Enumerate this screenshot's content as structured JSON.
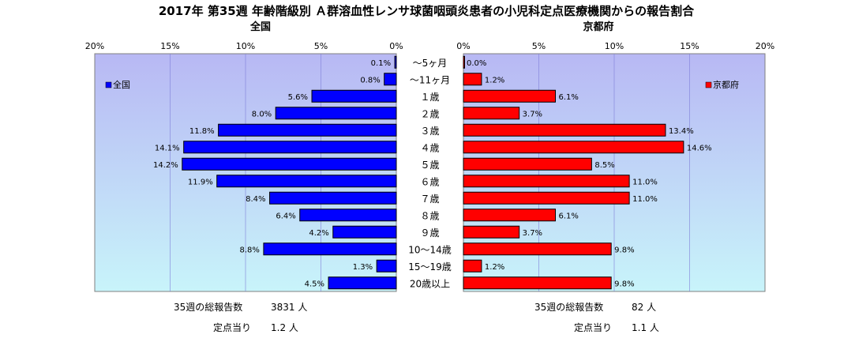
{
  "title": "2017年 第35週 年齢階級別 Ａ群溶血性レンサ球菌咽頭炎患者の小児科定点医療機関からの報告割合",
  "chart_data": {
    "type": "bar",
    "orientation": "horizontal",
    "layout": "back-to-back",
    "categories": [
      "～5ヶ月",
      "～11ヶ月",
      "１歳",
      "２歳",
      "３歳",
      "４歳",
      "５歳",
      "６歳",
      "７歳",
      "８歳",
      "９歳",
      "10～14歳",
      "15～19歳",
      "20歳以上"
    ],
    "panels": [
      {
        "subtitle": "全国",
        "legend": "全国",
        "legend_position": "left",
        "direction": "reversed",
        "color": "#0000ff",
        "xlim": [
          0,
          20
        ],
        "ticks": [
          "20%",
          "15%",
          "10%",
          "5%",
          "0%"
        ],
        "values": [
          0.1,
          0.8,
          5.6,
          8.0,
          11.8,
          14.1,
          14.2,
          11.9,
          8.4,
          6.4,
          4.2,
          8.8,
          1.3,
          4.5
        ],
        "labels": [
          "0.1%",
          "0.8%",
          "5.6%",
          "8.0%",
          "11.8%",
          "14.1%",
          "14.2%",
          "11.9%",
          "8.4%",
          "6.4%",
          "4.2%",
          "8.8%",
          "1.3%",
          "4.5%"
        ]
      },
      {
        "subtitle": "京都府",
        "legend": "京都府",
        "legend_position": "right",
        "direction": "normal",
        "color": "#ff0000",
        "xlim": [
          0,
          20
        ],
        "ticks": [
          "0%",
          "5%",
          "10%",
          "15%",
          "20%"
        ],
        "values": [
          0.0,
          1.2,
          6.1,
          3.7,
          13.4,
          14.6,
          8.5,
          11.0,
          11.0,
          6.1,
          3.7,
          9.8,
          1.2,
          9.8
        ],
        "labels": [
          "0.0%",
          "1.2%",
          "6.1%",
          "3.7%",
          "13.4%",
          "14.6%",
          "8.5%",
          "11.0%",
          "11.0%",
          "6.1%",
          "3.7%",
          "9.8%",
          "1.2%",
          "9.8%"
        ]
      }
    ],
    "grid": true,
    "background_gradient": [
      "#b8b8f4",
      "#c8f4fa"
    ]
  },
  "footer": {
    "national_total_label": "35週の総報告数",
    "national_total_value": "3831 人",
    "national_per_label": "定点当り",
    "national_per_value": "1.2 人",
    "kyoto_total_label": "35週の総報告数",
    "kyoto_total_value": "82 人",
    "kyoto_per_label": "定点当り",
    "kyoto_per_value": "1.1 人"
  }
}
